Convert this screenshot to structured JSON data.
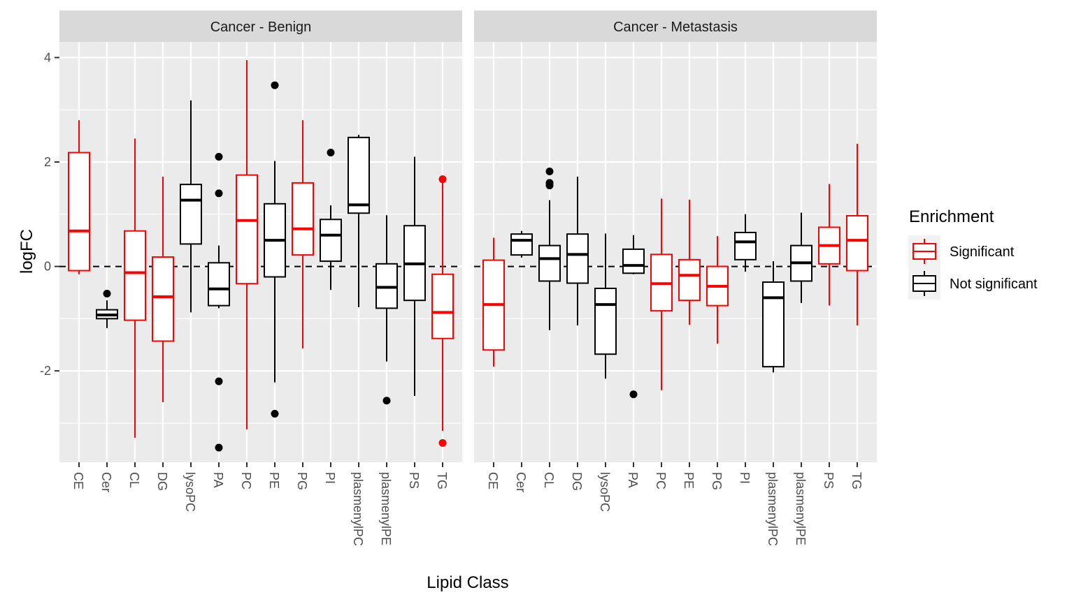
{
  "chart_data": {
    "type": "boxplot",
    "xlabel": "Lipid Class",
    "ylabel": "logFC",
    "ylim": [
      -3.75,
      4.3
    ],
    "y_ticks": [
      -2,
      0,
      2,
      4
    ],
    "y_tick_labels": [
      "-2",
      "0",
      "2",
      "4"
    ],
    "reference_line": {
      "y": 0,
      "style": "dashed"
    },
    "categories": [
      "CE",
      "Cer",
      "CL",
      "DG",
      "lysoPC",
      "PA",
      "PC",
      "PE",
      "PG",
      "PI",
      "plasmenylPC",
      "plasmenylPE",
      "PS",
      "TG"
    ],
    "legend": {
      "title": "Enrichment",
      "entries": [
        {
          "label": "Significant",
          "color": "#ff0000"
        },
        {
          "label": "Not significant",
          "color": "#000000"
        }
      ]
    },
    "panels": [
      {
        "title": "Cancer - Benign",
        "boxes": [
          {
            "category": "CE",
            "enrichment": "Significant",
            "min": -0.15,
            "q1": -0.08,
            "median": 0.68,
            "q3": 2.18,
            "max": 2.8,
            "outliers": []
          },
          {
            "category": "Cer",
            "enrichment": "Not significant",
            "min": -1.18,
            "q1": -1.0,
            "median": -0.93,
            "q3": -0.83,
            "max": -0.65,
            "outliers": [
              -0.52
            ]
          },
          {
            "category": "CL",
            "enrichment": "Significant",
            "min": -3.28,
            "q1": -1.03,
            "median": -0.12,
            "q3": 0.68,
            "max": 2.45,
            "outliers": []
          },
          {
            "category": "DG",
            "enrichment": "Significant",
            "min": -2.6,
            "q1": -1.43,
            "median": -0.58,
            "q3": 0.18,
            "max": 1.72,
            "outliers": []
          },
          {
            "category": "lysoPC",
            "enrichment": "Not significant",
            "min": -0.88,
            "q1": 0.43,
            "median": 1.27,
            "q3": 1.57,
            "max": 3.18,
            "outliers": []
          },
          {
            "category": "PA",
            "enrichment": "Not significant",
            "min": -0.8,
            "q1": -0.75,
            "median": -0.43,
            "q3": 0.07,
            "max": 0.4,
            "outliers": [
              2.1,
              1.4,
              -2.2,
              -3.47
            ]
          },
          {
            "category": "PC",
            "enrichment": "Significant",
            "min": -3.12,
            "q1": -0.33,
            "median": 0.88,
            "q3": 1.75,
            "max": 3.95,
            "outliers": []
          },
          {
            "category": "PE",
            "enrichment": "Not significant",
            "min": -2.22,
            "q1": -0.2,
            "median": 0.5,
            "q3": 1.2,
            "max": 2.02,
            "outliers": [
              3.47,
              -2.82
            ]
          },
          {
            "category": "PG",
            "enrichment": "Significant",
            "min": -1.57,
            "q1": 0.22,
            "median": 0.72,
            "q3": 1.6,
            "max": 2.8,
            "outliers": []
          },
          {
            "category": "PI",
            "enrichment": "Not significant",
            "min": -0.45,
            "q1": 0.1,
            "median": 0.6,
            "q3": 0.9,
            "max": 1.17,
            "outliers": [
              2.18
            ]
          },
          {
            "category": "plasmenylPC",
            "enrichment": "Not significant",
            "min": -0.78,
            "q1": 1.02,
            "median": 1.18,
            "q3": 2.47,
            "max": 2.52,
            "outliers": []
          },
          {
            "category": "plasmenylPE",
            "enrichment": "Not significant",
            "min": -1.82,
            "q1": -0.8,
            "median": -0.4,
            "q3": 0.05,
            "max": 0.98,
            "outliers": [
              -2.57
            ]
          },
          {
            "category": "PS",
            "enrichment": "Not significant",
            "min": -2.48,
            "q1": -0.65,
            "median": 0.05,
            "q3": 0.78,
            "max": 2.1,
            "outliers": []
          },
          {
            "category": "TG",
            "enrichment": "Significant",
            "min": -3.15,
            "q1": -1.38,
            "median": -0.88,
            "q3": -0.15,
            "max": 1.6,
            "outliers": [
              1.67,
              -3.38
            ]
          }
        ]
      },
      {
        "title": "Cancer - Metastasis",
        "boxes": [
          {
            "category": "CE",
            "enrichment": "Significant",
            "min": -1.92,
            "q1": -1.6,
            "median": -0.73,
            "q3": 0.12,
            "max": 0.55,
            "outliers": []
          },
          {
            "category": "Cer",
            "enrichment": "Not significant",
            "min": 0.17,
            "q1": 0.22,
            "median": 0.5,
            "q3": 0.62,
            "max": 0.68,
            "outliers": []
          },
          {
            "category": "CL",
            "enrichment": "Not significant",
            "min": -1.22,
            "q1": -0.28,
            "median": 0.15,
            "q3": 0.4,
            "max": 1.27,
            "outliers": [
              1.82,
              1.6,
              1.55
            ]
          },
          {
            "category": "DG",
            "enrichment": "Not significant",
            "min": -1.13,
            "q1": -0.32,
            "median": 0.23,
            "q3": 0.62,
            "max": 1.72,
            "outliers": []
          },
          {
            "category": "lysoPC",
            "enrichment": "Not significant",
            "min": -2.15,
            "q1": -1.68,
            "median": -0.73,
            "q3": -0.42,
            "max": 0.63,
            "outliers": []
          },
          {
            "category": "PA",
            "enrichment": "Not significant",
            "min": -0.15,
            "q1": -0.13,
            "median": 0.02,
            "q3": 0.33,
            "max": 0.6,
            "outliers": [
              -2.45
            ]
          },
          {
            "category": "PC",
            "enrichment": "Significant",
            "min": -2.37,
            "q1": -0.85,
            "median": -0.33,
            "q3": 0.23,
            "max": 1.3,
            "outliers": []
          },
          {
            "category": "PE",
            "enrichment": "Significant",
            "min": -1.12,
            "q1": -0.65,
            "median": -0.17,
            "q3": 0.13,
            "max": 1.28,
            "outliers": []
          },
          {
            "category": "PG",
            "enrichment": "Significant",
            "min": -1.48,
            "q1": -0.75,
            "median": -0.38,
            "q3": 0.0,
            "max": 0.58,
            "outliers": []
          },
          {
            "category": "PI",
            "enrichment": "Not significant",
            "min": -0.1,
            "q1": 0.13,
            "median": 0.47,
            "q3": 0.65,
            "max": 1.0,
            "outliers": []
          },
          {
            "category": "plasmenylPC",
            "enrichment": "Not significant",
            "min": -2.03,
            "q1": -1.92,
            "median": -0.6,
            "q3": -0.3,
            "max": 0.1,
            "outliers": []
          },
          {
            "category": "plasmenylPE",
            "enrichment": "Not significant",
            "min": -0.7,
            "q1": -0.28,
            "median": 0.07,
            "q3": 0.4,
            "max": 1.03,
            "outliers": []
          },
          {
            "category": "PS",
            "enrichment": "Significant",
            "min": -0.75,
            "q1": 0.05,
            "median": 0.4,
            "q3": 0.75,
            "max": 1.58,
            "outliers": []
          },
          {
            "category": "TG",
            "enrichment": "Significant",
            "min": -1.13,
            "q1": -0.08,
            "median": 0.5,
            "q3": 0.97,
            "max": 2.35,
            "outliers": []
          }
        ]
      }
    ]
  }
}
